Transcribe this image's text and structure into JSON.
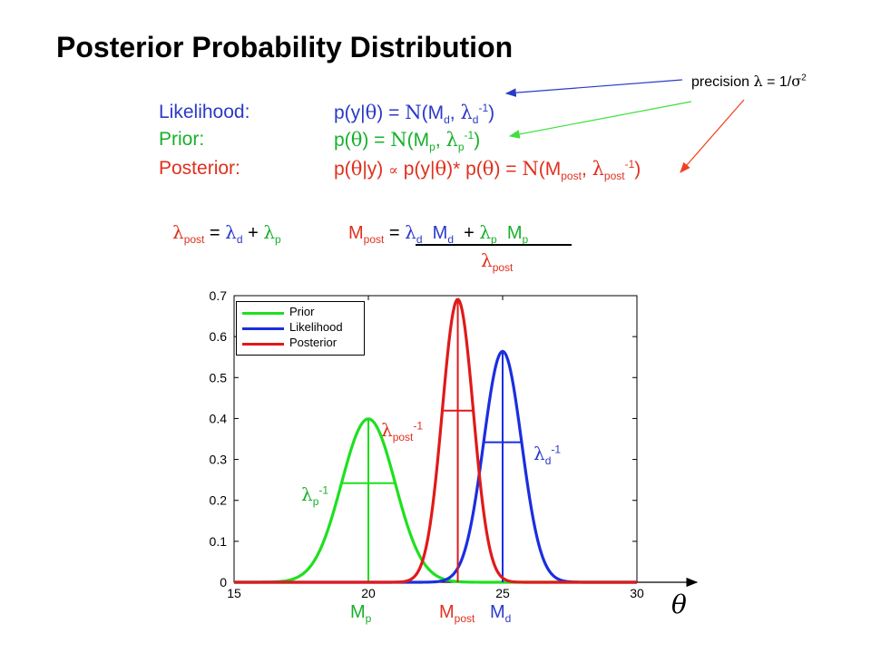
{
  "title": "Posterior Probability Distribution",
  "precision_note": "precision λ = 1/σ²",
  "equations": {
    "likelihood_label": "Likelihood:",
    "likelihood_rhs": "p(y|θ) = N(M_d, λ_d^-1)",
    "prior_label": "Prior:",
    "prior_rhs": "p(θ) = N(M_p, λ_p^-1)",
    "posterior_label": "Posterior:",
    "posterior_rhs": "p(θ|y) ∝ p(y|θ)* p(θ) = N(M_post, λ_post^-1)"
  },
  "update_rules": {
    "precision_sum": "λ_post = λ_d + λ_p",
    "mean_numerator": "M_post = λ_d M_d + λ_p M_p",
    "mean_denominator": "λ_post"
  },
  "annotations": {
    "lambda_post_inv": "λ_post^-1",
    "lambda_d_inv": "λ_d^-1",
    "lambda_p_inv": "λ_p^-1",
    "mp": "M_p",
    "mpost": "M_post",
    "md": "M_d",
    "theta": "θ"
  },
  "colors": {
    "prior": "#1ee01e",
    "likelihood": "#1a2ee0",
    "posterior": "#e01a1a",
    "likelihood_text": "#2a3ac8",
    "prior_text": "#17b02a",
    "posterior_text": "#e0301e"
  },
  "chart_data": {
    "type": "line",
    "x_range": [
      15,
      30
    ],
    "ylim": [
      0,
      0.7
    ],
    "x_ticks": [
      "15",
      "20",
      "25",
      "30"
    ],
    "y_ticks": [
      "0",
      "0.1",
      "0.2",
      "0.3",
      "0.4",
      "0.5",
      "0.6",
      "0.7"
    ],
    "legend_placement": "top-left",
    "grid": false,
    "series": [
      {
        "name": "Prior",
        "mean": 20,
        "precision": 1.0,
        "peak": 0.399
      },
      {
        "name": "Likelihood",
        "mean": 25,
        "precision": 2.0,
        "peak": 0.564
      },
      {
        "name": "Posterior",
        "mean": 23.33,
        "precision": 3.0,
        "peak": 0.691
      }
    ]
  }
}
